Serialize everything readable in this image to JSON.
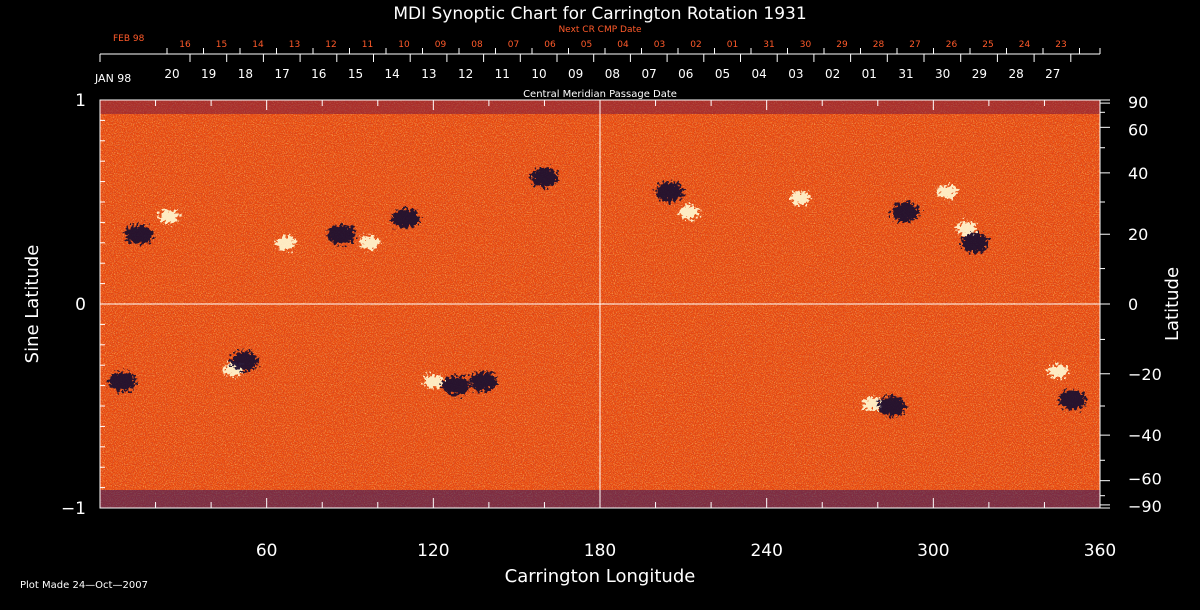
{
  "chart_data": {
    "type": "heatmap",
    "title": "MDI Synoptic Chart for Carrington Rotation 1931",
    "xlabel": "Carrington Longitude",
    "ylabel_left": "Sine Latitude",
    "ylabel_right": "Latitude",
    "xlim": [
      0,
      360
    ],
    "ylim": [
      -1,
      1
    ],
    "x_ticks": [
      60,
      120,
      180,
      240,
      300,
      360
    ],
    "y_ticks_left": [
      {
        "value": 1,
        "label": "1"
      },
      {
        "value": 0,
        "label": "0"
      },
      {
        "value": -1,
        "label": "−1"
      }
    ],
    "y_ticks_right": [
      90,
      60,
      40,
      20,
      0,
      -20,
      -40,
      -60,
      -90
    ],
    "central_meridian_label": "Central Meridian Passage Date",
    "next_cr_label": "Next CR CMP Date",
    "upper_month_label": "FEB 98",
    "upper_dates": [
      "16",
      "15",
      "14",
      "13",
      "12",
      "11",
      "10",
      "09",
      "08",
      "07",
      "06",
      "05",
      "04",
      "03",
      "02",
      "01",
      "31",
      "30",
      "29",
      "28",
      "27",
      "26",
      "25",
      "24",
      "23"
    ],
    "lower_month_label": "JAN 98",
    "lower_dates": [
      "20",
      "19",
      "18",
      "17",
      "16",
      "15",
      "14",
      "13",
      "12",
      "11",
      "10",
      "09",
      "08",
      "07",
      "06",
      "05",
      "04",
      "03",
      "02",
      "01",
      "31",
      "30",
      "29",
      "28",
      "27"
    ],
    "active_regions": [
      {
        "lon": 14,
        "lat_sine": 0.34,
        "polarity": "negative"
      },
      {
        "lon": 25,
        "lat_sine": 0.43,
        "polarity": "positive"
      },
      {
        "lon": 67,
        "lat_sine": 0.3,
        "polarity": "positive"
      },
      {
        "lon": 87,
        "lat_sine": 0.34,
        "polarity": "negative"
      },
      {
        "lon": 97,
        "lat_sine": 0.3,
        "polarity": "positive"
      },
      {
        "lon": 110,
        "lat_sine": 0.42,
        "polarity": "negative"
      },
      {
        "lon": 160,
        "lat_sine": 0.62,
        "polarity": "negative"
      },
      {
        "lon": 205,
        "lat_sine": 0.55,
        "polarity": "negative"
      },
      {
        "lon": 212,
        "lat_sine": 0.45,
        "polarity": "positive"
      },
      {
        "lon": 252,
        "lat_sine": 0.52,
        "polarity": "positive"
      },
      {
        "lon": 290,
        "lat_sine": 0.45,
        "polarity": "negative"
      },
      {
        "lon": 305,
        "lat_sine": 0.55,
        "polarity": "positive"
      },
      {
        "lon": 312,
        "lat_sine": 0.37,
        "polarity": "positive"
      },
      {
        "lon": 315,
        "lat_sine": 0.3,
        "polarity": "negative"
      },
      {
        "lon": 48,
        "lat_sine": -0.32,
        "polarity": "positive"
      },
      {
        "lon": 52,
        "lat_sine": -0.28,
        "polarity": "negative"
      },
      {
        "lon": 120,
        "lat_sine": -0.38,
        "polarity": "positive"
      },
      {
        "lon": 128,
        "lat_sine": -0.4,
        "polarity": "negative"
      },
      {
        "lon": 138,
        "lat_sine": -0.38,
        "polarity": "negative"
      },
      {
        "lon": 278,
        "lat_sine": -0.49,
        "polarity": "positive"
      },
      {
        "lon": 285,
        "lat_sine": -0.5,
        "polarity": "negative"
      },
      {
        "lon": 345,
        "lat_sine": -0.33,
        "polarity": "positive"
      },
      {
        "lon": 350,
        "lat_sine": -0.47,
        "polarity": "negative"
      },
      {
        "lon": 8,
        "lat_sine": -0.38,
        "polarity": "negative"
      }
    ]
  },
  "footer": "Plot Made 24—Oct—2007"
}
